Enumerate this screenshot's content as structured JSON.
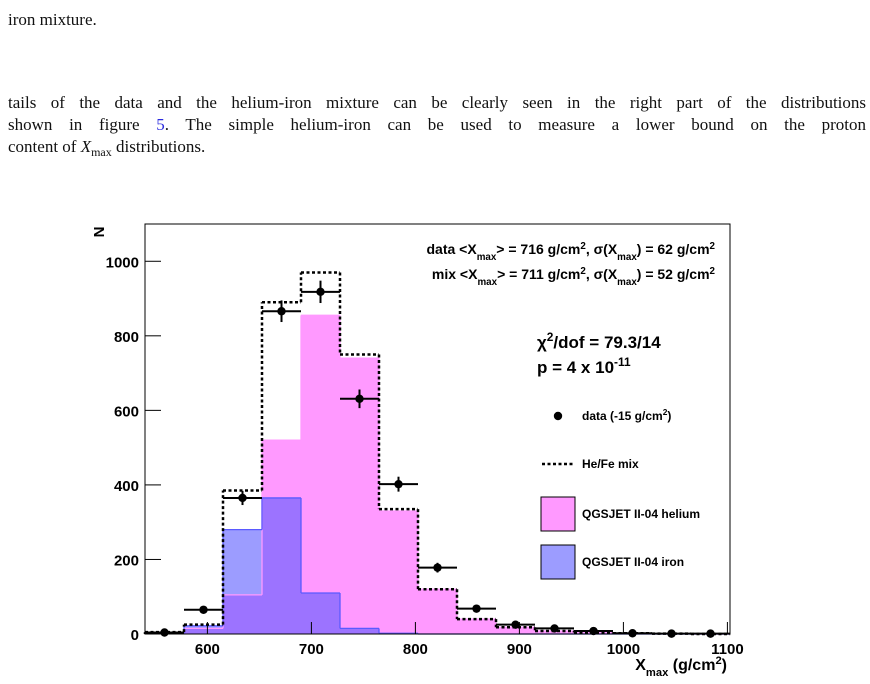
{
  "intro_fragment": "iron mixture.",
  "paragraph": {
    "lines": [
      [
        {
          "text": "tails of the data and the helium-iron mixture can be clearly seen in the right part of the distributions"
        }
      ],
      [
        {
          "text": "shown in figure "
        },
        {
          "text": "5",
          "style": "link"
        },
        {
          "text": ". The simple helium-iron can be used to measure a lower bound on the proton"
        }
      ],
      [
        {
          "text": "content of "
        },
        {
          "text": "X",
          "style": "italic"
        },
        {
          "text": "max",
          "style": "sub"
        },
        {
          "text": " distributions."
        }
      ]
    ]
  },
  "chart_data": {
    "type": "histogram",
    "y_label": "N",
    "x_label": [
      {
        "text": "X"
      },
      {
        "text": "max",
        "shift": "sub"
      },
      {
        "text": " (g/cm"
      },
      {
        "text": "2",
        "shift": "super"
      },
      {
        "text": ")"
      }
    ],
    "bins": [
      540,
      577.5,
      615,
      652.5,
      690,
      727.5,
      765,
      802.5,
      840,
      877.5,
      915,
      952.5,
      990,
      1027.5,
      1065,
      1102.5
    ],
    "xlim": [
      540,
      1102.5
    ],
    "xticks": [
      600,
      700,
      800,
      900,
      1000,
      1100
    ],
    "ylim": [
      0,
      1100
    ],
    "yticks": [
      0,
      200,
      400,
      600,
      800,
      1000
    ],
    "series": [
      {
        "name": "QGSJET II-04 helium",
        "style": "fill",
        "color": "#ff99ff",
        "opacity": 1,
        "values": [
          3,
          15,
          105,
          520,
          855,
          740,
          330,
          120,
          40,
          18,
          8,
          4,
          2,
          1,
          0
        ]
      },
      {
        "name": "QGSJET II-04 iron",
        "style": "fill",
        "color": "#5a5aff",
        "opacity": 0.6,
        "values": [
          2,
          22,
          280,
          365,
          110,
          15,
          2,
          0,
          0,
          0,
          0,
          0,
          0,
          0,
          0
        ]
      },
      {
        "name": "He/Fe mix",
        "style": "dotted",
        "color": "#000000",
        "values": [
          5,
          25,
          385,
          890,
          970,
          750,
          335,
          120,
          40,
          18,
          8,
          4,
          2,
          1,
          0
        ]
      },
      {
        "name": [
          {
            "text": "data (-15 g/cm"
          },
          {
            "text": "2",
            "shift": "super"
          },
          {
            "text": ")"
          }
        ],
        "style": "points",
        "color": "#000000",
        "values": [
          4,
          65,
          365,
          866,
          918,
          631,
          402,
          178,
          68,
          25,
          15,
          8,
          2,
          1,
          1
        ],
        "errors": [
          2,
          8,
          19,
          29,
          30,
          25,
          20,
          13,
          8,
          5,
          4,
          3,
          2,
          1,
          1
        ]
      }
    ],
    "annotations": [
      [
        {
          "text": "data <X"
        },
        {
          "text": "max",
          "shift": "sub"
        },
        {
          "text": "> = 716 g/cm"
        },
        {
          "text": "2",
          "shift": "super"
        },
        {
          "text": ", σ(X"
        },
        {
          "text": "max",
          "shift": "sub"
        },
        {
          "text": ") = 62 g/cm"
        },
        {
          "text": "2",
          "shift": "super"
        }
      ],
      [
        {
          "text": "mix <X"
        },
        {
          "text": "max",
          "shift": "sub"
        },
        {
          "text": "> = 711 g/cm"
        },
        {
          "text": "2",
          "shift": "super"
        },
        {
          "text": ", σ(X"
        },
        {
          "text": "max",
          "shift": "sub"
        },
        {
          "text": ") = 52 g/cm"
        },
        {
          "text": "2",
          "shift": "super"
        }
      ],
      [
        {
          "text": "χ"
        },
        {
          "text": "2",
          "shift": "super"
        },
        {
          "text": "/dof = 79.3/14"
        }
      ],
      [
        {
          "text": "p = 4 x 10"
        },
        {
          "text": "-11",
          "shift": "super"
        }
      ]
    ]
  }
}
